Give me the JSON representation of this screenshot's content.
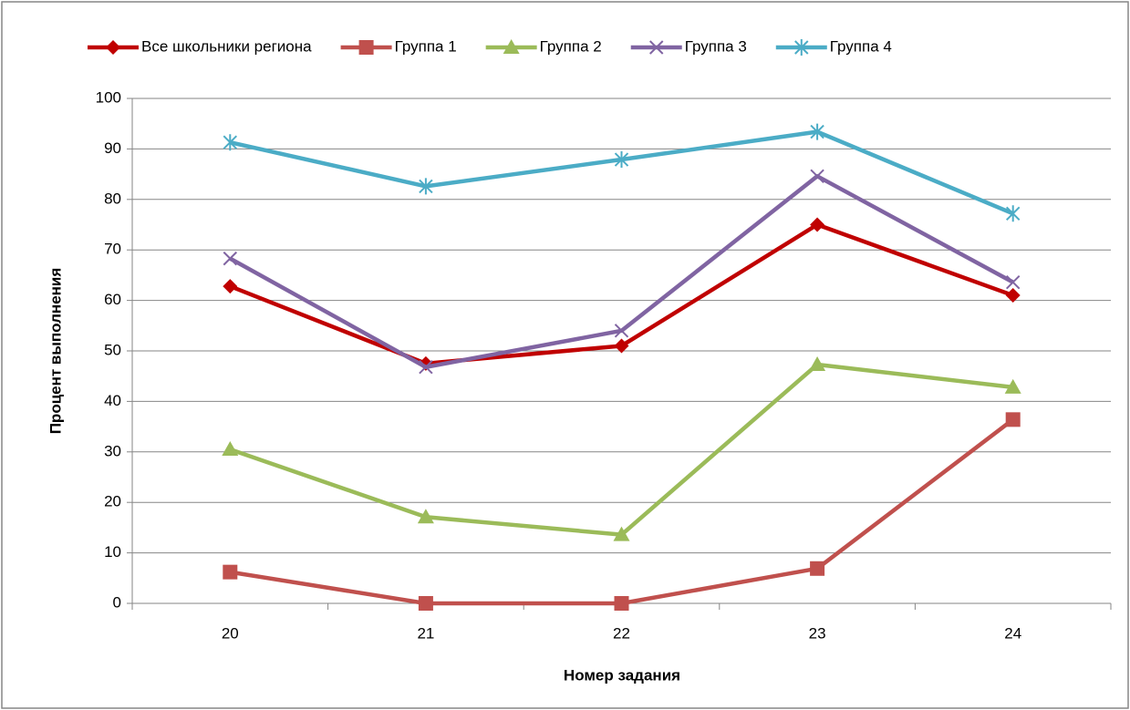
{
  "chart_data": {
    "type": "line",
    "xlabel": "Номер задания",
    "ylabel": "Процент выполнения",
    "categories": [
      "20",
      "21",
      "22",
      "23",
      "24"
    ],
    "series": [
      {
        "name": "Все школьники региона",
        "color": "#c00000",
        "marker": "diamond",
        "values": [
          62.8,
          47.5,
          51,
          75,
          61
        ]
      },
      {
        "name": "Группа 1",
        "color": "#c0504d",
        "marker": "square",
        "values": [
          6.2,
          0,
          0,
          6.9,
          36.4
        ]
      },
      {
        "name": "Группа 2",
        "color": "#9bbb59",
        "marker": "triangle",
        "values": [
          30.5,
          17.1,
          13.6,
          47.3,
          42.8
        ]
      },
      {
        "name": "Группа 3",
        "color": "#8064a2",
        "marker": "x",
        "values": [
          68.3,
          46.8,
          54,
          84.6,
          63.6
        ]
      },
      {
        "name": "Группа 4",
        "color": "#4bacc6",
        "marker": "star",
        "values": [
          91.3,
          82.6,
          87.9,
          93.4,
          77.2
        ]
      }
    ],
    "ylim": [
      0,
      100
    ],
    "yticks": [
      0,
      10,
      20,
      30,
      40,
      50,
      60,
      70,
      80,
      90,
      100
    ],
    "grid": true,
    "legend": "top"
  }
}
